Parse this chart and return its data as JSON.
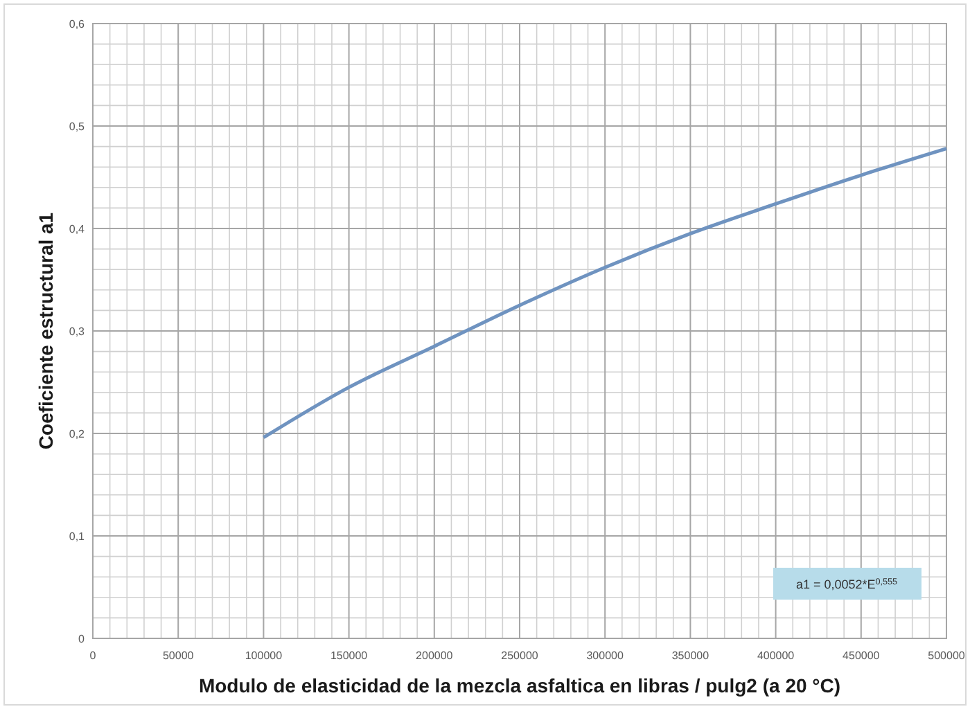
{
  "chart_data": {
    "type": "line",
    "xlabel": "Modulo de elasticidad de la mezcla asfaltica en libras / pulg2 (a 20 °C)",
    "ylabel": "Coeficiente estructural a1",
    "x": [
      100000,
      150000,
      200000,
      250000,
      300000,
      350000,
      400000,
      450000,
      500000
    ],
    "series": [
      {
        "color": "#6f93c0",
        "values": [
          0.196,
          0.245,
          0.285,
          0.325,
          0.362,
          0.395,
          0.424,
          0.452,
          0.478
        ]
      }
    ],
    "xlim": [
      0,
      500000
    ],
    "xticks": [
      0,
      50000,
      100000,
      150000,
      200000,
      250000,
      300000,
      350000,
      400000,
      450000,
      500000
    ],
    "ylim": [
      0,
      0.6
    ],
    "yticks": [
      0,
      {
        "value": 0.1,
        "label": "0,1"
      },
      {
        "value": 0.2,
        "label": "0,2"
      },
      {
        "value": 0.3,
        "label": "0,3"
      },
      {
        "value": 0.4,
        "label": "0,4"
      },
      {
        "value": 0.5,
        "label": "0,5"
      },
      {
        "value": 0.6,
        "label": "0,6"
      }
    ],
    "grid": true,
    "marker": "none",
    "line_style": "solid",
    "annotations": [
      "a1 = 0,0052*E$^{0,555}$"
    ]
  }
}
